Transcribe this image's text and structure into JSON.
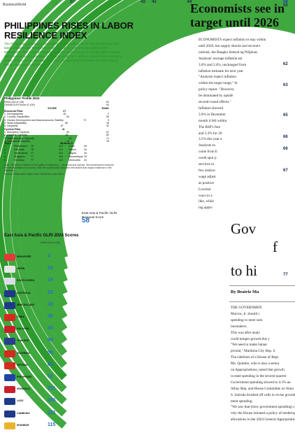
{
  "header": {
    "masthead": "BusinessWorld",
    "page_number": "77"
  },
  "infographic": {
    "title": "PHILIPPINES RISES IN LABOR RESILIENCE INDEX",
    "intro": "The Philippines jumped up three spots to 62nd place out of 116 economies in the latest Global Labor Resilience Index (GLRI) by global policy advisory firm Whiteshield. The index assesses countries on the resilience of their labor markets and provides policy guidance on how to enhance it. With an overall labor resilience score of 54 (out of a possible 100), the country performed below the East Asia & Pacific regional score of 58.",
    "profile": {
      "title": "Philippines' Profile 2024",
      "rank_label": "Rank (Out of 116)",
      "rank_value": "62",
      "score_label": "Overall GLRI Score (0-100)",
      "score_value": "54",
      "columns": [
        "SCORE",
        "RANK"
      ],
      "structural_label": "Structural Pillar",
      "structural_score": "67",
      "structural_items": [
        {
          "label": "1. Demographics",
          "score": "81",
          "rank": "2"
        },
        {
          "label": "2. Country Capabilities",
          "score": "54",
          "rank": "59"
        },
        {
          "label": "3. Human Development and Macroeconomic Stability",
          "score": "72",
          "rank": "9"
        },
        {
          "label": "4. Skills Adaptability",
          "score": "66",
          "rank": "16"
        },
        {
          "label": "5. Inequality",
          "score": "57",
          "rank": "32"
        }
      ],
      "cyclical_label": "Cyclical Pillar",
      "cyclical_score": "41",
      "cyclical_items": [
        {
          "label": "1. Absorptive Capacity",
          "score": "45",
          "rank": "67"
        },
        {
          "label": "2. Adaptive Capacity",
          "score": "38",
          "rank": "82"
        },
        {
          "label": "3. Transformative Capacity",
          "score": "40",
          "rank": "71"
        },
        {
          "label": "4. Institutional Capacity",
          "score": "40",
          "rank": "78"
        }
      ]
    },
    "top5": {
      "title_top": "Top 5",
      "title_bottom": "Bottom 5",
      "top": [
        {
          "rank": "1",
          "country": "Switzerland",
          "score": "78"
        },
        {
          "rank": "2",
          "country": "Denmark",
          "score": "78"
        },
        {
          "rank": "3",
          "country": "Netherlands",
          "score": "77"
        },
        {
          "rank": "4",
          "country": "Singapore",
          "score": "77"
        },
        {
          "rank": "5",
          "country": "Germany",
          "score": "77"
        }
      ],
      "bottom": [
        {
          "rank": "112",
          "country": "Chad",
          "score": "35"
        },
        {
          "rank": "113",
          "country": "Yemen",
          "score": "34"
        },
        {
          "rank": "114",
          "country": "Angola",
          "score": "34"
        },
        {
          "rank": "115",
          "country": "Mozambique",
          "score": "33"
        },
        {
          "rank": "116",
          "country": "Venezuela",
          "score": "33"
        }
      ]
    },
    "note": "Note: The index is based on two pillars of indicators — structural and cyclical. Structural factors measure the fundamentals of a country, while the cyclical pillar assesses the factors that impact resilience in the short term.",
    "source": "Source: Whiteshield Global Labor Resilience Index 2024",
    "regional": {
      "label": "East Asia & Pacific GLRI Regional Score",
      "value": "58"
    },
    "east_asia_title": "East Asia & Pacific GLRI 2024 Scores",
    "east_asia_header": "RANK (Out of 116)",
    "countries": [
      {
        "name": "SINGAPORE",
        "rank": "4",
        "score": "77",
        "flag": "#e03a3a"
      },
      {
        "name": "JAPAN",
        "rank": "20",
        "score": "67",
        "flag": "#e8e8e8"
      },
      {
        "name": "SOUTH KOREA",
        "rank": "24",
        "score": "66",
        "flag": "#dadde8"
      },
      {
        "name": "AUSTRALIA",
        "rank": "25",
        "score": "66",
        "flag": "#1f3a8a"
      },
      {
        "name": "NEW ZEALAND",
        "rank": "28",
        "score": "65",
        "flag": "#1f3a8a"
      },
      {
        "name": "CHINA",
        "rank": "36",
        "score": "63",
        "flag": "#d62a1e"
      },
      {
        "name": "MALAYSIA",
        "rank": "39",
        "score": "62",
        "flag": "#c8202a"
      },
      {
        "name": "THAILAND",
        "rank": "59",
        "score": "55",
        "flag": "#2a3f8f"
      },
      {
        "name": "INDONESIA",
        "rank": "59",
        "score": "55",
        "flag": "#d62a1e"
      },
      {
        "name": "VIETNAM",
        "rank": "60",
        "score": "54",
        "flag": "#d62a1e"
      },
      {
        "name": "PHILIPPINES",
        "rank": "62",
        "score": "54",
        "flag": "#1f44a8"
      },
      {
        "name": "MONGOLIA",
        "rank": "101",
        "score": "44",
        "flag": "#c8202a"
      },
      {
        "name": "LAOS",
        "rank": "106",
        "score": "42",
        "flag": "#1f3a8a"
      },
      {
        "name": "CAMBODIA",
        "rank": "112",
        "score": "42",
        "flag": "#1f3a8a"
      },
      {
        "name": "MYANMAR",
        "rank": "115",
        "score": "37",
        "flag": "#e8b52a"
      }
    ]
  },
  "article1": {
    "headline_line1": "Economists see in",
    "headline_line2": "target until 2026",
    "lines": [
      "ECONOMISTS expect inflation to stay within",
      "until 2026, but supply shocks and second-r",
      "outlook, the Bangko Sentral ng Pilipinas",
      "Analysts' average inflation est",
      "3.0% and 3.4%, unchanged from",
      "inflation estimate for next year",
      "\"Analysts expect inflation",
      "within the target range,\" th",
      "policy report. \"However,",
      "be dominated by upside",
      "second-round effects.\"",
      "Inflation showed",
      "3.9% in December",
      "month it fell within",
      "The BSP's fore",
      "and 3.3% for 20",
      "3.5% this year a",
      "Analysts ex",
      "come from E",
      "could spur p",
      "services in",
      "few analyst",
      "wage adjust",
      "as positive",
      "Lowmal",
      "ways to a",
      "like, while",
      "ing appro"
    ]
  },
  "article2": {
    "headline_line1": "Gov",
    "headline_line2": "f",
    "headline_line3": "to hi",
    "byline": "By Beatriz Ma",
    "lines": [
      "THE GOVERNMEN",
      "Marcos, Jr. should c",
      "spending to meet som",
      "lawmakers.",
      "This was after analy",
      "could temper growth this y",
      "\"We need to make balanc",
      "pivotal,\" Marikina City Rep. S",
      "The sidelines of a House of Repr",
      "Ms. Quimbo, who is also a senior",
      "on Appropriations, noted that growth",
      "in state spending in the second quarter.",
      "Government spending slowed to 4.3% an",
      "Albay Rep. and House Committee on Ways",
      "S. Salceda brushed off calls to revise growth targ",
      "ment spending.",
      "\"We saw that (slow government spending) co",
      "why the House initiated a policy of tendering t",
      "allocations in the 2024 General Appropriations A"
    ]
  }
}
